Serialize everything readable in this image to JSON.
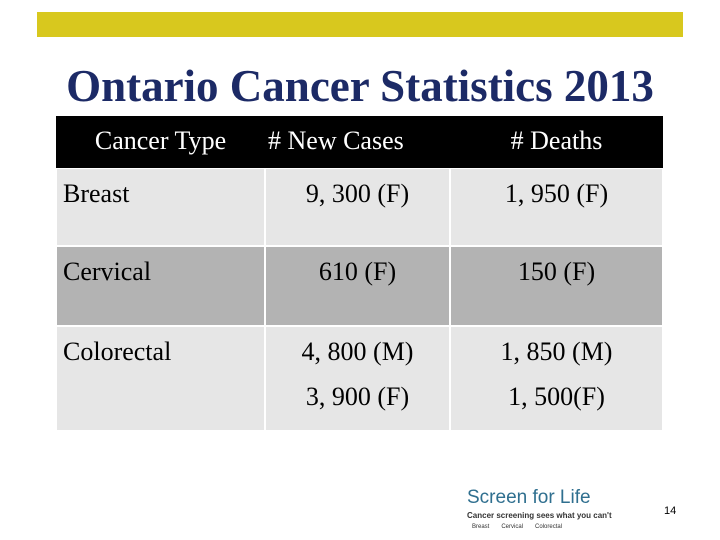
{
  "header": {
    "title": "Ontario Cancer Statistics 2013"
  },
  "table": {
    "headers": [
      "Cancer Type",
      "# New Cases",
      "# Deaths"
    ],
    "rows": [
      [
        [
          "Breast"
        ],
        [
          "9, 300 (F)"
        ],
        [
          "1, 950 (F)"
        ]
      ],
      [
        [
          "Cervical"
        ],
        [
          "610 (F)"
        ],
        [
          "150 (F)"
        ]
      ],
      [
        [
          "Colorectal"
        ],
        [
          "4, 800 (M)",
          "3, 900 (F)"
        ],
        [
          "1, 850 (M)",
          "1, 500(F)"
        ]
      ]
    ]
  },
  "logo": {
    "name": "Screen for Life",
    "tagline": "Cancer screening sees what you can't",
    "items": [
      "Breast",
      "Cervical",
      "Colorectal"
    ]
  },
  "page_number": "14"
}
